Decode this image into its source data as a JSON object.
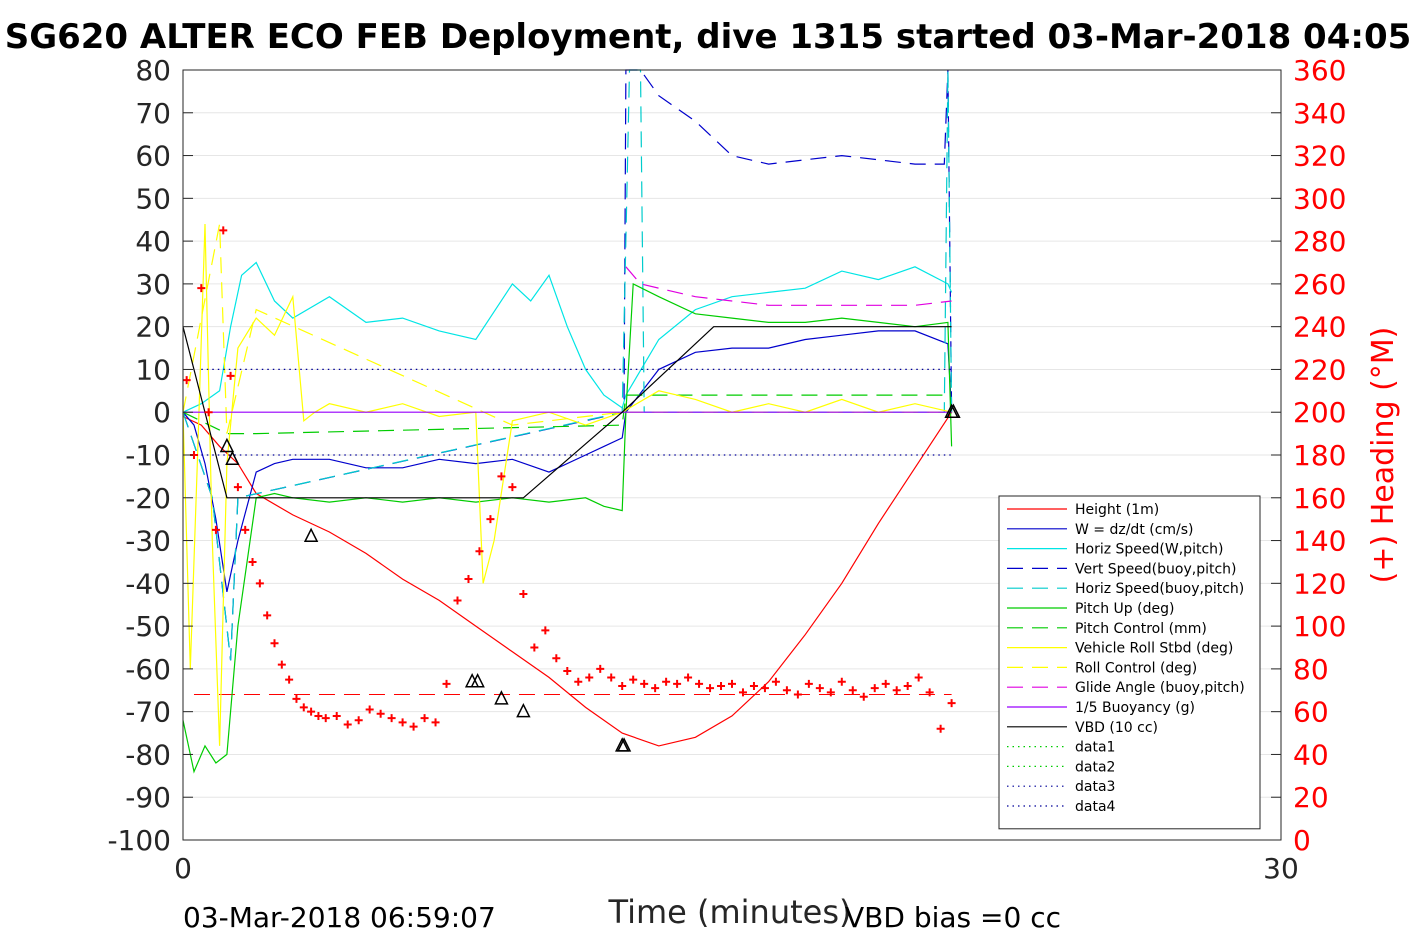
{
  "chart_data": {
    "type": "line",
    "title": "SG620 ALTER ECO FEB Deployment, dive 1315 started 03-Mar-2018 04:05",
    "xlabel": "Time (minutes)",
    "ylabel_right": "(+) Heading (°M)",
    "xlim": [
      0,
      30
    ],
    "ylim_left": [
      -100,
      80
    ],
    "ylim_right": [
      0,
      360
    ],
    "x_ticks": [
      "0",
      "30"
    ],
    "y_ticks_left": [
      "80",
      "70",
      "60",
      "50",
      "40",
      "30",
      "20",
      "10",
      "0",
      "-10",
      "-20",
      "-30",
      "-40",
      "-50",
      "-60",
      "-70",
      "-80",
      "-90",
      "-100"
    ],
    "y_ticks_right": [
      "360",
      "340",
      "320",
      "300",
      "280",
      "260",
      "240",
      "220",
      "200",
      "180",
      "160",
      "140",
      "120",
      "100",
      "80",
      "60",
      "40",
      "20",
      "0"
    ],
    "footer_left": "03-Mar-2018 06:59:07",
    "footer_right": "VBD bias =0 cc",
    "legend_position": "lower-right",
    "series": [
      {
        "name": "Height (1m)",
        "color": "#ff0000",
        "dash": "solid",
        "x": [
          0.0,
          0.5,
          1.0,
          1.5,
          2.0,
          3.0,
          4.0,
          5.0,
          6.0,
          7.0,
          8.0,
          9.0,
          10.0,
          11.0,
          12.0,
          13.0,
          14.0,
          15.0,
          16.0,
          17.0,
          18.0,
          19.0,
          20.0,
          21.0
        ],
        "y": [
          -1,
          -3,
          -8,
          -12,
          -19,
          -24,
          -28,
          -33,
          -39,
          -44,
          -50,
          -56,
          -62,
          -69,
          -75,
          -78,
          -76,
          -71,
          -63,
          -52,
          -40,
          -26,
          -13,
          0
        ]
      },
      {
        "name": "W = dz/dt (cm/s)",
        "color": "#0000cc",
        "dash": "solid",
        "x": [
          0.0,
          0.3,
          0.6,
          0.9,
          1.2,
          1.5,
          2.0,
          2.5,
          3.0,
          4.0,
          5.0,
          6.0,
          7.0,
          8.0,
          9.0,
          10.0,
          11.0,
          11.5,
          12.0,
          12.1,
          13.0,
          14.0,
          15.0,
          16.0,
          17.0,
          18.0,
          19.0,
          20.0,
          20.9,
          21.0
        ],
        "y": [
          0,
          -3,
          -12,
          -25,
          -42,
          -30,
          -14,
          -12,
          -11,
          -11,
          -13,
          -13,
          -11,
          -12,
          -11,
          -14,
          -10,
          -8,
          -6,
          0,
          10,
          14,
          15,
          15,
          17,
          18,
          19,
          19,
          16,
          0
        ]
      },
      {
        "name": "Horiz Speed(W,pitch)",
        "color": "#00e5e5",
        "dash": "solid",
        "x": [
          0.0,
          0.5,
          1.0,
          1.3,
          1.6,
          2.0,
          2.5,
          3.0,
          4.0,
          5.0,
          6.0,
          7.0,
          8.0,
          9.0,
          9.5,
          10.0,
          10.5,
          11.0,
          11.5,
          12.0,
          12.1,
          13.0,
          14.0,
          15.0,
          16.0,
          17.0,
          18.0,
          19.0,
          20.0,
          20.9,
          21.0
        ],
        "y": [
          0,
          2,
          5,
          20,
          32,
          35,
          26,
          22,
          27,
          21,
          22,
          19,
          17,
          30,
          26,
          32,
          20,
          10,
          4,
          1,
          4,
          17,
          24,
          27,
          28,
          29,
          33,
          31,
          34,
          30,
          28
        ]
      },
      {
        "name": "Vert Speed(buoy,pitch)",
        "color": "#0000cc",
        "dash": "dash",
        "x": [
          0.0,
          0.8,
          1.3,
          1.5,
          12.05,
          12.1,
          12.5,
          13.0,
          14.0,
          15.0,
          16.0,
          17.0,
          18.0,
          19.0,
          20.0,
          20.8,
          20.9,
          21.0
        ],
        "y": [
          0,
          -20,
          -58,
          -20,
          0,
          80,
          80,
          74,
          68,
          60,
          58,
          59,
          60,
          59,
          58,
          58,
          80,
          0
        ]
      },
      {
        "name": "Horiz Speed(buoy,pitch)",
        "color": "#00cccc",
        "dash": "dash",
        "x": [
          0.0,
          0.8,
          1.3,
          1.5,
          12.0,
          12.2,
          12.5,
          12.6,
          20.8,
          20.9,
          21.0
        ],
        "y": [
          0,
          -20,
          -58,
          -20,
          0,
          80,
          80,
          0,
          0,
          80,
          0
        ]
      },
      {
        "name": "Pitch Up (deg)",
        "color": "#00cc00",
        "dash": "solid",
        "x": [
          0.0,
          0.3,
          0.6,
          0.9,
          1.2,
          1.5,
          2.0,
          2.5,
          3.0,
          4.0,
          5.0,
          6.0,
          7.0,
          8.0,
          9.0,
          10.0,
          11.0,
          11.5,
          12.0,
          12.1,
          12.3,
          13.0,
          14.0,
          15.0,
          16.0,
          17.0,
          18.0,
          19.0,
          20.0,
          20.9,
          21.0
        ],
        "y": [
          -72,
          -84,
          -78,
          -82,
          -80,
          -50,
          -20,
          -19,
          -20,
          -21,
          -20,
          -21,
          -20,
          -21,
          -20,
          -21,
          -20,
          -22,
          -23,
          0,
          30,
          27,
          23,
          22,
          21,
          21,
          22,
          21,
          20,
          21,
          -8
        ]
      },
      {
        "name": "Pitch Control (mm)",
        "color": "#00cc00",
        "dash": "dash",
        "x": [
          0.0,
          1.2,
          2.0,
          12.0,
          12.1,
          21.0
        ],
        "y": [
          0,
          -5,
          -5,
          -3,
          4,
          4
        ]
      },
      {
        "name": "Vehicle Roll Stbd (deg)",
        "color": "#ffff00",
        "dash": "solid",
        "x": [
          0.0,
          0.2,
          0.4,
          0.6,
          0.8,
          1.0,
          1.2,
          1.5,
          2.0,
          2.5,
          3.0,
          3.3,
          3.6,
          4.0,
          5.0,
          6.0,
          7.0,
          8.0,
          8.2,
          8.5,
          9.0,
          10.0,
          11.0,
          12.0,
          13.0,
          14.0,
          15.0,
          16.0,
          17.0,
          18.0,
          19.0,
          20.0,
          21.0
        ],
        "y": [
          0,
          -60,
          -10,
          44,
          -30,
          -78,
          -12,
          15,
          22,
          18,
          27,
          -2,
          0,
          2,
          0,
          2,
          -1,
          0,
          -40,
          -30,
          -2,
          0,
          -3,
          0,
          5,
          3,
          0,
          2,
          0,
          3,
          0,
          2,
          0
        ]
      },
      {
        "name": "Roll Control (deg)",
        "color": "#ffff00",
        "dash": "dash",
        "x": [
          0.0,
          1.0,
          1.2,
          2.0,
          9.0,
          12.0,
          21.0
        ],
        "y": [
          0,
          44,
          -5,
          24,
          -3,
          0,
          0
        ]
      },
      {
        "name": "Glide Angle (buoy,pitch)",
        "color": "#e000e0",
        "dash": "dash",
        "x": [
          12.1,
          12.5,
          13.0,
          14.0,
          15.0,
          16.0,
          17.0,
          18.0,
          19.0,
          20.0,
          21.0
        ],
        "y": [
          34,
          30,
          29,
          27,
          26,
          25,
          25,
          25,
          25,
          25,
          26
        ]
      },
      {
        "name": "1/5 Buoyancy (g)",
        "color": "#9900ff",
        "dash": "solid",
        "x": [
          0.0,
          12.0,
          21.0
        ],
        "y": [
          0,
          0,
          0
        ]
      },
      {
        "name": "VBD (10 cc)",
        "color": "#000000",
        "dash": "solid",
        "x": [
          0.0,
          1.2,
          2.0,
          9.3,
          12.0,
          14.5,
          21.0
        ],
        "y": [
          20,
          -20,
          -20,
          -20,
          0,
          20,
          20
        ]
      },
      {
        "name": "data1",
        "color": "#00cc00",
        "dash": "dot",
        "x": [],
        "y": []
      },
      {
        "name": "data2",
        "color": "#00cc00",
        "dash": "dot",
        "x": [],
        "y": []
      },
      {
        "name": "data3",
        "color": "#000099",
        "dash": "dot",
        "x": [
          0.5,
          21.0
        ],
        "y": [
          10,
          10
        ]
      },
      {
        "name": "data4",
        "color": "#000099",
        "dash": "dot",
        "x": [
          0.5,
          21.0
        ],
        "y": [
          -10,
          -10
        ]
      }
    ],
    "reference_lines": [
      {
        "axis": "right",
        "value": 68,
        "color": "#ff0000",
        "dash": "dash",
        "x": [
          0.3,
          21.0
        ]
      }
    ],
    "heading_points": {
      "axis": "right",
      "color": "#ff0000",
      "marker": "+",
      "x": [
        0.1,
        0.3,
        0.5,
        0.7,
        0.9,
        1.1,
        1.3,
        1.5,
        1.7,
        1.9,
        2.1,
        2.3,
        2.5,
        2.7,
        2.9,
        3.1,
        3.3,
        3.5,
        3.7,
        3.9,
        4.2,
        4.5,
        4.8,
        5.1,
        5.4,
        5.7,
        6.0,
        6.3,
        6.6,
        6.9,
        7.2,
        7.5,
        7.8,
        8.1,
        8.4,
        8.7,
        9.0,
        9.3,
        9.6,
        9.9,
        10.2,
        10.5,
        10.8,
        11.1,
        11.4,
        11.7,
        12.0,
        12.3,
        12.6,
        12.9,
        13.2,
        13.5,
        13.8,
        14.1,
        14.4,
        14.7,
        15.0,
        15.3,
        15.6,
        15.9,
        16.2,
        16.5,
        16.8,
        17.1,
        17.4,
        17.7,
        18.0,
        18.3,
        18.6,
        18.9,
        19.2,
        19.5,
        19.8,
        20.1,
        20.4,
        20.7,
        21.0
      ],
      "y": [
        215,
        180,
        258,
        200,
        145,
        285,
        217,
        165,
        145,
        130,
        120,
        105,
        92,
        82,
        75,
        66,
        62,
        60,
        58,
        57,
        58,
        54,
        56,
        61,
        59,
        57,
        55,
        53,
        57,
        55,
        73,
        112,
        122,
        135,
        150,
        170,
        165,
        115,
        90,
        98,
        85,
        79,
        74,
        76,
        80,
        76,
        72,
        75,
        73,
        71,
        74,
        73,
        76,
        73,
        71,
        72,
        73,
        69,
        72,
        71,
        74,
        70,
        68,
        73,
        71,
        69,
        74,
        70,
        67,
        71,
        73,
        70,
        72,
        76,
        69,
        52,
        64
      ]
    },
    "triangle_markers": {
      "x": [
        1.2,
        1.35,
        3.5,
        7.9,
        8.05,
        8.7,
        9.3,
        12.0,
        12.05,
        21.0,
        21.05
      ],
      "y": [
        -8,
        -11,
        -29,
        -63,
        -63,
        -67,
        -70,
        -78,
        -78,
        0,
        0
      ]
    },
    "legend_entries": [
      "Height (1m)",
      "W = dz/dt (cm/s)",
      "Horiz Speed(W,pitch)",
      "Vert Speed(buoy,pitch)",
      "Horiz Speed(buoy,pitch)",
      "Pitch Up (deg)",
      "Pitch Control (mm)",
      "Vehicle Roll Stbd (deg)",
      "Roll Control (deg)",
      "Glide Angle (buoy,pitch)",
      "1/5 Buoyancy (g)",
      "VBD (10 cc)",
      "data1",
      "data2",
      "data3",
      "data4"
    ],
    "grid": true
  }
}
